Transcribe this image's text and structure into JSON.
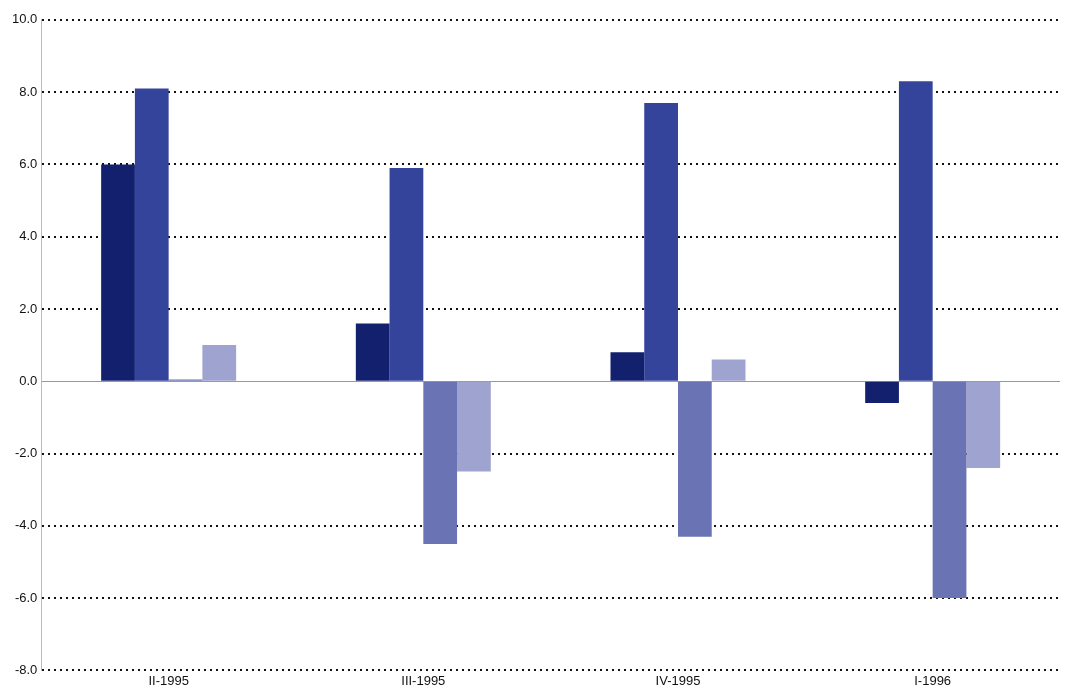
{
  "chart_data": {
    "type": "bar",
    "categories": [
      "II-1995",
      "III-1995",
      "IV-1995",
      "I-1996"
    ],
    "series": [
      {
        "color": "#13206e",
        "values": [
          6.0,
          1.6,
          0.8,
          -0.6
        ]
      },
      {
        "color": "#34449a",
        "values": [
          8.1,
          5.9,
          7.7,
          8.3
        ]
      },
      {
        "color": "#6a74b4",
        "values": [
          0.05,
          -4.5,
          -4.3,
          -6.0
        ]
      },
      {
        "color": "#9ea3d0",
        "values": [
          1.0,
          -2.5,
          0.6,
          -2.4
        ]
      }
    ],
    "ylim": [
      -8,
      10
    ],
    "yticks": [
      {
        "value": -8,
        "label": "-8.0"
      },
      {
        "value": -6,
        "label": "-6.0"
      },
      {
        "value": -4,
        "label": "-4.0"
      },
      {
        "value": -2,
        "label": "-2.0"
      },
      {
        "value": 0,
        "label": "0.0"
      },
      {
        "value": 2,
        "label": "2.0"
      },
      {
        "value": 4,
        "label": "4.0"
      },
      {
        "value": 6,
        "label": "6.0"
      },
      {
        "value": 8,
        "label": "8.0"
      },
      {
        "value": 10,
        "label": "10.0"
      }
    ],
    "grid": "y",
    "legend": false
  }
}
